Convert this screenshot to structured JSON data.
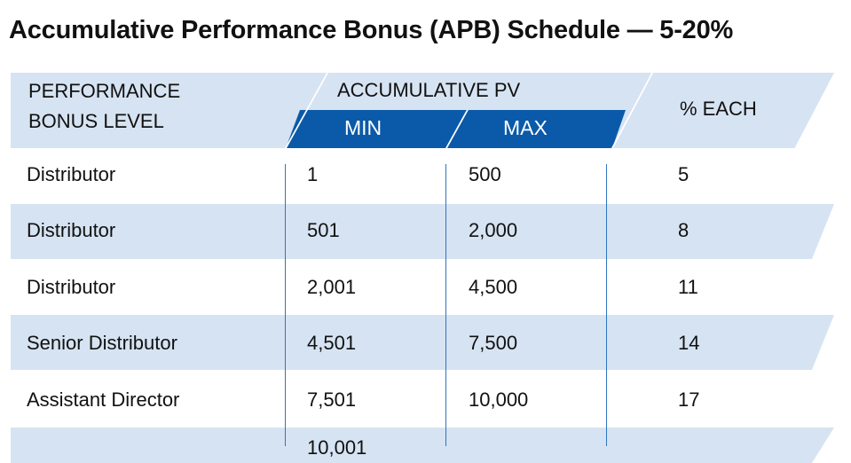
{
  "title": "Accumulative Performance Bonus (APB) Schedule — 5-20%",
  "header": {
    "level_line1": "PERFORMANCE",
    "level_line2": "BONUS LEVEL",
    "pv_group": "ACCUMULATIVE PV",
    "min": "MIN",
    "max": "MAX",
    "percent": "% EACH"
  },
  "colors": {
    "light_band": "#d6e3f2",
    "dark_band": "#0b5aa9",
    "grid_line": "#2f74c0"
  },
  "rows": [
    {
      "level": "Distributor",
      "min": "1",
      "max": "500",
      "percent": "5"
    },
    {
      "level": "Distributor",
      "min": "501",
      "max": "2,000",
      "percent": "8"
    },
    {
      "level": "Distributor",
      "min": "2,001",
      "max": "4,500",
      "percent": "11"
    },
    {
      "level": "Senior Distributor",
      "min": "4,501",
      "max": "7,500",
      "percent": "14"
    },
    {
      "level": "Assistant Director",
      "min": "7,501",
      "max": "10,000",
      "percent": "17"
    },
    {
      "level": "",
      "min": "10,001",
      "max": "",
      "percent": ""
    }
  ]
}
